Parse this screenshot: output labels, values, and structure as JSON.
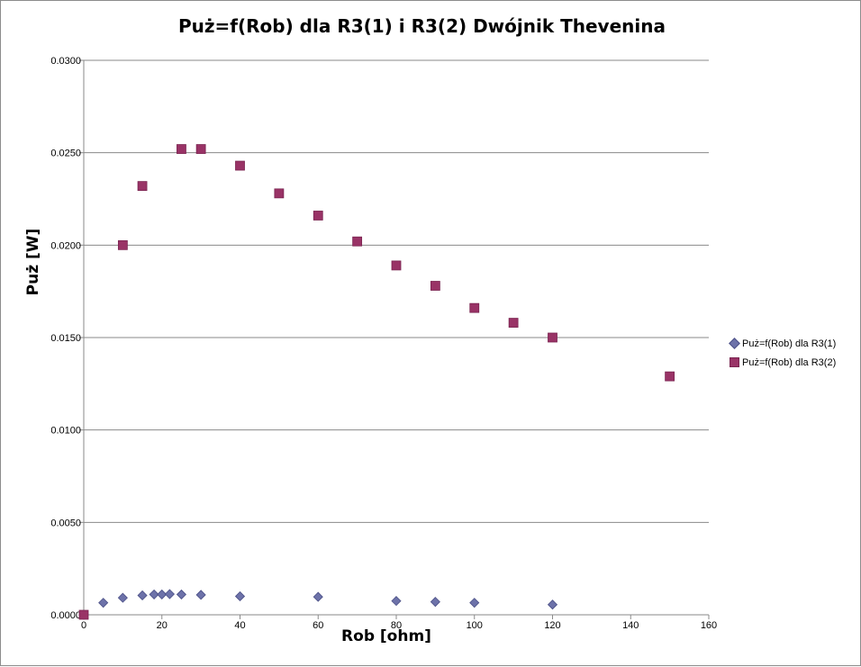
{
  "chart_data": {
    "type": "scatter",
    "title": "Puż=f(Rob) dla R3(1) i R3(2) Dwójnik Thevenina",
    "xlabel": "Rob [ohm]",
    "ylabel": "Puż [W]",
    "xlim": [
      0,
      160
    ],
    "ylim": [
      0,
      0.03
    ],
    "xticks": [
      "0",
      "20",
      "40",
      "60",
      "80",
      "100",
      "120",
      "140",
      "160"
    ],
    "yticks": [
      "0.0000",
      "0.0050",
      "0.0100",
      "0.0150",
      "0.0200",
      "0.0250",
      "0.0300"
    ],
    "grid": "horizontal",
    "legend_position": "right",
    "series": [
      {
        "name": "Puż=f(Rob) dla R3(1)",
        "marker": "diamond",
        "color": "#6d72a9",
        "points": [
          [
            0,
            0.0
          ],
          [
            5,
            0.00065
          ],
          [
            10,
            0.00092
          ],
          [
            15,
            0.00105
          ],
          [
            18,
            0.0011
          ],
          [
            20,
            0.0011
          ],
          [
            22,
            0.00112
          ],
          [
            25,
            0.0011
          ],
          [
            30,
            0.00108
          ],
          [
            40,
            0.001
          ],
          [
            60,
            0.00097
          ],
          [
            80,
            0.00075
          ],
          [
            90,
            0.0007
          ],
          [
            100,
            0.00065
          ],
          [
            120,
            0.00055
          ]
        ]
      },
      {
        "name": "Puż=f(Rob) dla R3(2)",
        "marker": "square",
        "color": "#993366",
        "points": [
          [
            0,
            0.0
          ],
          [
            10,
            0.02
          ],
          [
            15,
            0.0232
          ],
          [
            25,
            0.0252
          ],
          [
            30,
            0.0252
          ],
          [
            40,
            0.0243
          ],
          [
            50,
            0.0228
          ],
          [
            60,
            0.0216
          ],
          [
            70,
            0.0202
          ],
          [
            80,
            0.0189
          ],
          [
            90,
            0.0178
          ],
          [
            100,
            0.0166
          ],
          [
            110,
            0.0158
          ],
          [
            120,
            0.015
          ],
          [
            150,
            0.0129
          ]
        ]
      }
    ]
  }
}
